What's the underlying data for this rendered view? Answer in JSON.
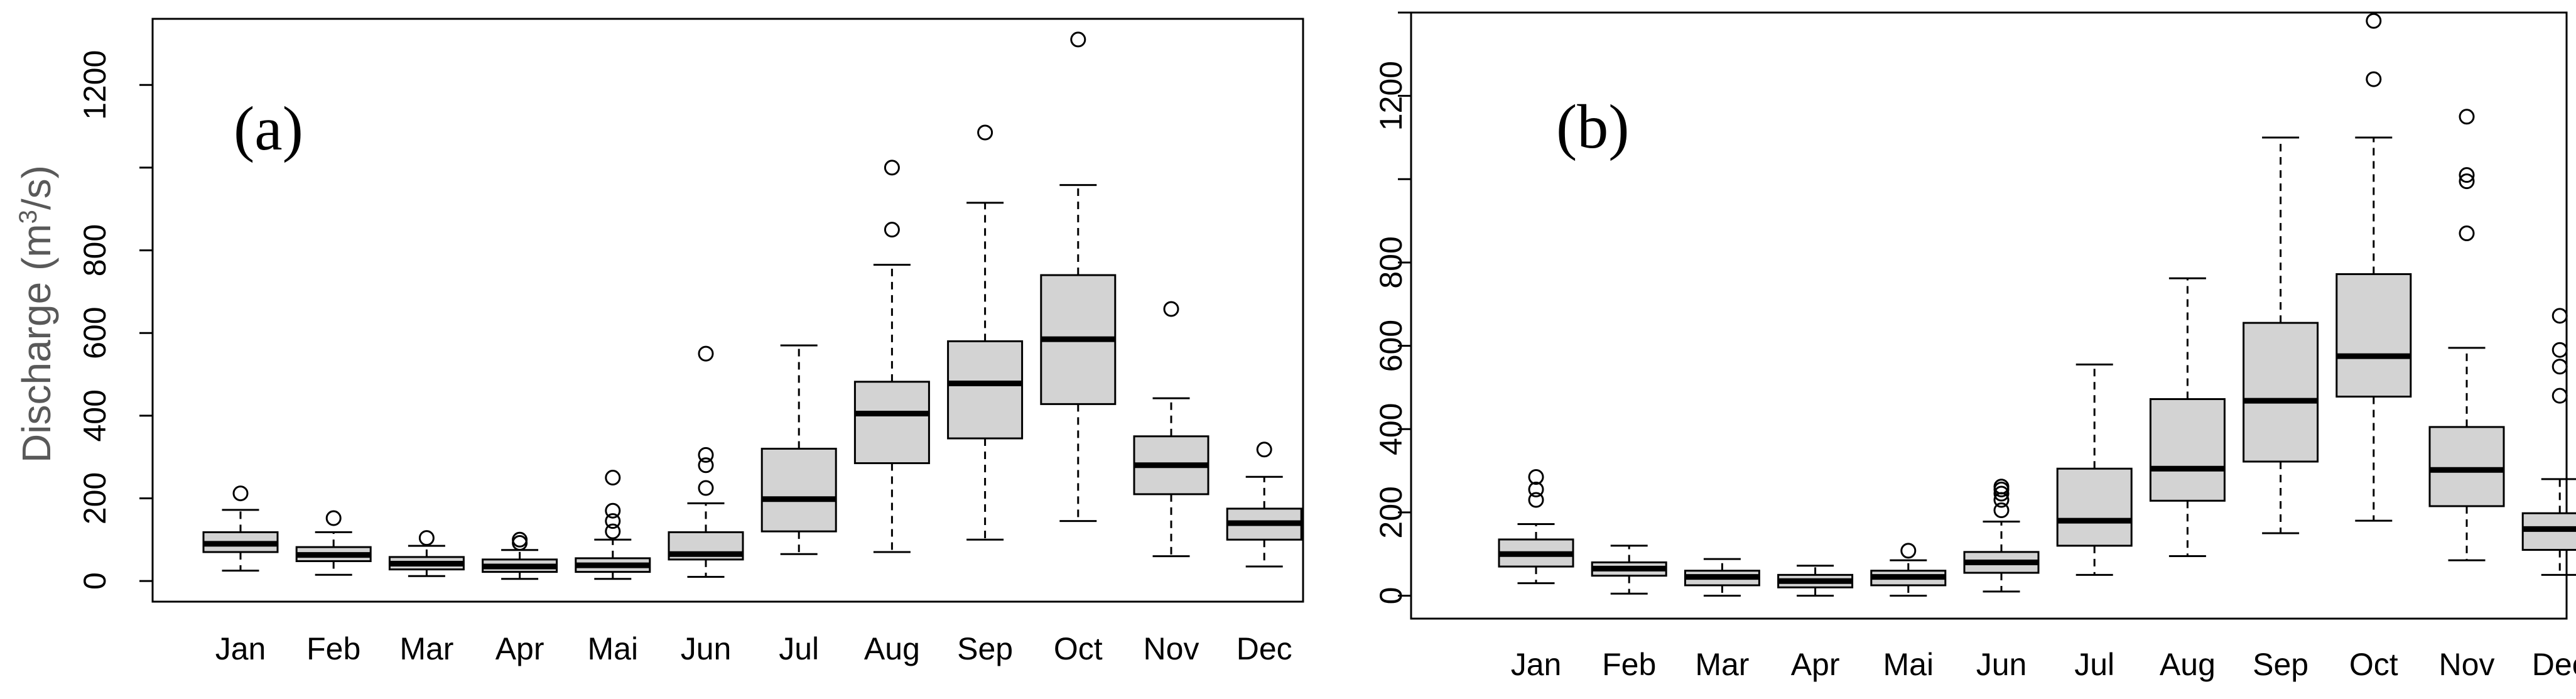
{
  "colors": {
    "box_fill": "#d3d3d3",
    "stroke": "#000000",
    "ylabel": "#595959",
    "background": "#ffffff"
  },
  "chart_data": [
    {
      "type": "box",
      "panel_label": "(a)",
      "ylabel": "Discharge (m³/s)",
      "ylabel_parts": [
        "Discharge (m",
        "3",
        "/s)"
      ],
      "ylim": [
        -50,
        1360
      ],
      "yticks": [
        0,
        200,
        400,
        600,
        800,
        1000,
        1200
      ],
      "ytick_labels": [
        "0",
        "200",
        "400",
        "600",
        "800",
        "",
        "1200"
      ],
      "categories": [
        "Jan",
        "Feb",
        "Mar",
        "Apr",
        "Mai",
        "Jun",
        "Jul",
        "Aug",
        "Sep",
        "Oct",
        "Nov",
        "Dec"
      ],
      "boxes": [
        {
          "low": 25,
          "q1": 70,
          "median": 90,
          "q3": 118,
          "high": 172,
          "outliers": [
            212
          ]
        },
        {
          "low": 15,
          "q1": 48,
          "median": 63,
          "q3": 82,
          "high": 118,
          "outliers": [
            152
          ]
        },
        {
          "low": 12,
          "q1": 28,
          "median": 42,
          "q3": 58,
          "high": 85,
          "outliers": [
            104
          ]
        },
        {
          "low": 5,
          "q1": 22,
          "median": 35,
          "q3": 52,
          "high": 75,
          "outliers": [
            92,
            100
          ]
        },
        {
          "low": 5,
          "q1": 22,
          "median": 38,
          "q3": 55,
          "high": 100,
          "outliers": [
            120,
            145,
            170,
            250
          ]
        },
        {
          "low": 10,
          "q1": 52,
          "median": 65,
          "q3": 118,
          "high": 188,
          "outliers": [
            225,
            280,
            305,
            550
          ]
        },
        {
          "low": 65,
          "q1": 120,
          "median": 198,
          "q3": 320,
          "high": 570,
          "outliers": []
        },
        {
          "low": 70,
          "q1": 285,
          "median": 405,
          "q3": 482,
          "high": 765,
          "outliers": [
            850,
            1000
          ]
        },
        {
          "low": 100,
          "q1": 345,
          "median": 478,
          "q3": 580,
          "high": 915,
          "outliers": [
            1085
          ]
        },
        {
          "low": 145,
          "q1": 428,
          "median": 585,
          "q3": 740,
          "high": 958,
          "outliers": [
            1310
          ]
        },
        {
          "low": 60,
          "q1": 210,
          "median": 280,
          "q3": 350,
          "high": 442,
          "outliers": [
            658
          ]
        },
        {
          "low": 35,
          "q1": 100,
          "median": 140,
          "q3": 175,
          "high": 252,
          "outliers": [
            318
          ]
        }
      ]
    },
    {
      "type": "box",
      "panel_label": "(b)",
      "ylabel": "",
      "ylim": [
        -55,
        1400
      ],
      "yticks": [
        0,
        200,
        400,
        600,
        800,
        1000,
        1200,
        1400
      ],
      "ytick_labels": [
        "0",
        "200",
        "400",
        "600",
        "800",
        "",
        "1200",
        ""
      ],
      "categories": [
        "Jan",
        "Feb",
        "Mar",
        "Apr",
        "Mai",
        "Jun",
        "Jul",
        "Aug",
        "Sep",
        "Oct",
        "Nov",
        "Dec"
      ],
      "boxes": [
        {
          "low": 30,
          "q1": 70,
          "median": 100,
          "q3": 135,
          "high": 172,
          "outliers": [
            230,
            255,
            285
          ]
        },
        {
          "low": 5,
          "q1": 48,
          "median": 65,
          "q3": 80,
          "high": 120,
          "outliers": []
        },
        {
          "low": 0,
          "q1": 25,
          "median": 45,
          "q3": 60,
          "high": 88,
          "outliers": []
        },
        {
          "low": 0,
          "q1": 20,
          "median": 35,
          "q3": 50,
          "high": 72,
          "outliers": []
        },
        {
          "low": 0,
          "q1": 25,
          "median": 45,
          "q3": 60,
          "high": 85,
          "outliers": [
            108
          ]
        },
        {
          "low": 10,
          "q1": 55,
          "median": 80,
          "q3": 105,
          "high": 178,
          "outliers": [
            205,
            230,
            245,
            255,
            262
          ]
        },
        {
          "low": 50,
          "q1": 120,
          "median": 180,
          "q3": 305,
          "high": 555,
          "outliers": []
        },
        {
          "low": 95,
          "q1": 228,
          "median": 305,
          "q3": 472,
          "high": 762,
          "outliers": []
        },
        {
          "low": 150,
          "q1": 322,
          "median": 468,
          "q3": 655,
          "high": 1100,
          "outliers": []
        },
        {
          "low": 180,
          "q1": 478,
          "median": 575,
          "q3": 772,
          "high": 1100,
          "outliers": [
            1240,
            1380
          ]
        },
        {
          "low": 85,
          "q1": 215,
          "median": 302,
          "q3": 405,
          "high": 595,
          "outliers": [
            870,
            995,
            1010,
            1150
          ]
        },
        {
          "low": 50,
          "q1": 110,
          "median": 160,
          "q3": 198,
          "high": 280,
          "outliers": [
            480,
            550,
            590,
            672
          ]
        }
      ]
    }
  ]
}
